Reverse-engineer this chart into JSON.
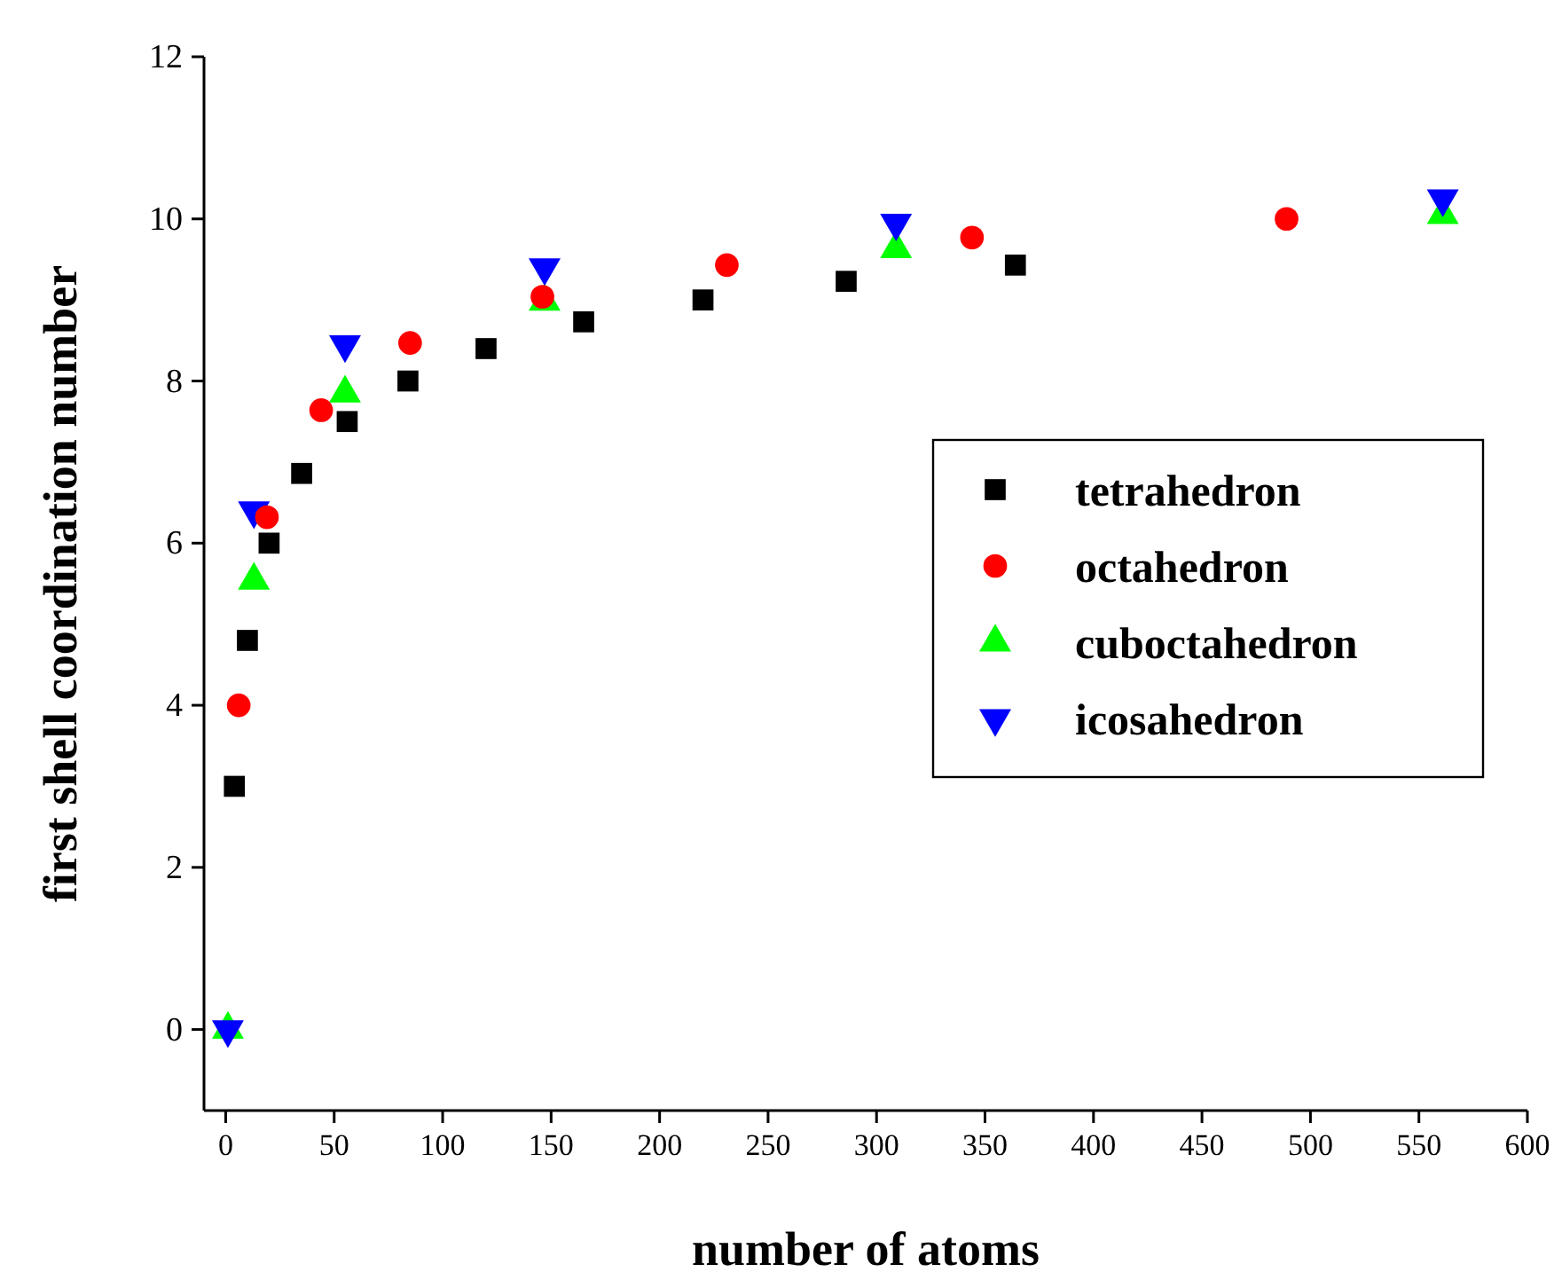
{
  "chart_data": {
    "type": "scatter",
    "xlabel": "number of atoms",
    "ylabel": "first shell coordination number",
    "xlim": [
      -10,
      600
    ],
    "xticks": [
      0,
      50,
      100,
      150,
      200,
      250,
      300,
      350,
      400,
      450,
      500,
      550,
      600
    ],
    "ylim": [
      -1,
      12
    ],
    "yticks": [
      0,
      2,
      4,
      6,
      8,
      10,
      12
    ],
    "grid": false,
    "legend": "right",
    "series": [
      {
        "name": "tetrahedron",
        "color": "#000000",
        "marker": "square",
        "x": [
          4,
          10,
          20,
          35,
          56,
          84,
          120,
          165,
          220,
          286,
          364
        ],
        "values": [
          3,
          4.8,
          6,
          6.86,
          7.5,
          8,
          8.4,
          8.73,
          9,
          9.23,
          9.43
        ]
      },
      {
        "name": "octahedron",
        "color": "#ff0000",
        "marker": "circle",
        "x": [
          6,
          19,
          44,
          85,
          146,
          231,
          344,
          489
        ],
        "values": [
          4,
          6.32,
          7.64,
          8.47,
          9.04,
          9.43,
          9.77,
          10
        ]
      },
      {
        "name": "cuboctahedron",
        "color": "#00ff00",
        "marker": "triangle",
        "x": [
          1,
          13,
          55,
          147,
          309,
          561
        ],
        "values": [
          0,
          5.54,
          7.85,
          8.98,
          9.63,
          10.05
        ]
      },
      {
        "name": "icosahedron",
        "color": "#0000ff",
        "marker": "triangle-down",
        "x": [
          1,
          13,
          55,
          147,
          309,
          561
        ],
        "values": [
          0,
          6.4,
          8.45,
          9.4,
          9.95,
          10.25
        ]
      }
    ]
  }
}
